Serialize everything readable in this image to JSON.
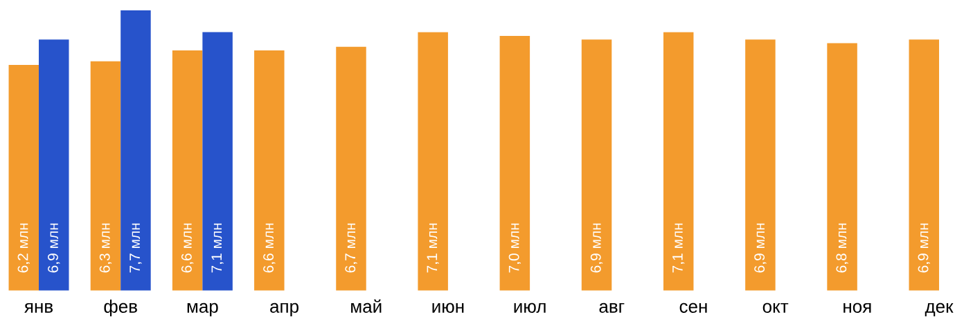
{
  "chart_data": {
    "type": "bar",
    "categories": [
      "янв",
      "фев",
      "мар",
      "апр",
      "май",
      "июн",
      "июл",
      "авг",
      "сен",
      "окт",
      "ноя",
      "дек"
    ],
    "series": [
      {
        "color": "#f39b2d",
        "values": [
          6.2,
          6.3,
          6.6,
          6.6,
          6.7,
          7.1,
          7.0,
          6.9,
          7.1,
          6.9,
          6.8,
          6.9
        ],
        "value_labels": [
          "6,2 млн",
          "6,3 млн",
          "6,6 млн",
          "6,6 млн",
          "6,7 млн",
          "7,1 млн",
          "7,0 млн",
          "6,9 млн",
          "7,1 млн",
          "6,9 млн",
          "6,8 млн",
          "6,9 млн"
        ]
      },
      {
        "color": "#2753cb",
        "values": [
          6.9,
          7.7,
          7.1,
          null,
          null,
          null,
          null,
          null,
          null,
          null,
          null,
          null
        ],
        "value_labels": [
          "6,9 млн",
          "7,7 млн",
          "7,1 млн",
          null,
          null,
          null,
          null,
          null,
          null,
          null,
          null,
          null
        ]
      }
    ],
    "tick_labels": "x"
  }
}
